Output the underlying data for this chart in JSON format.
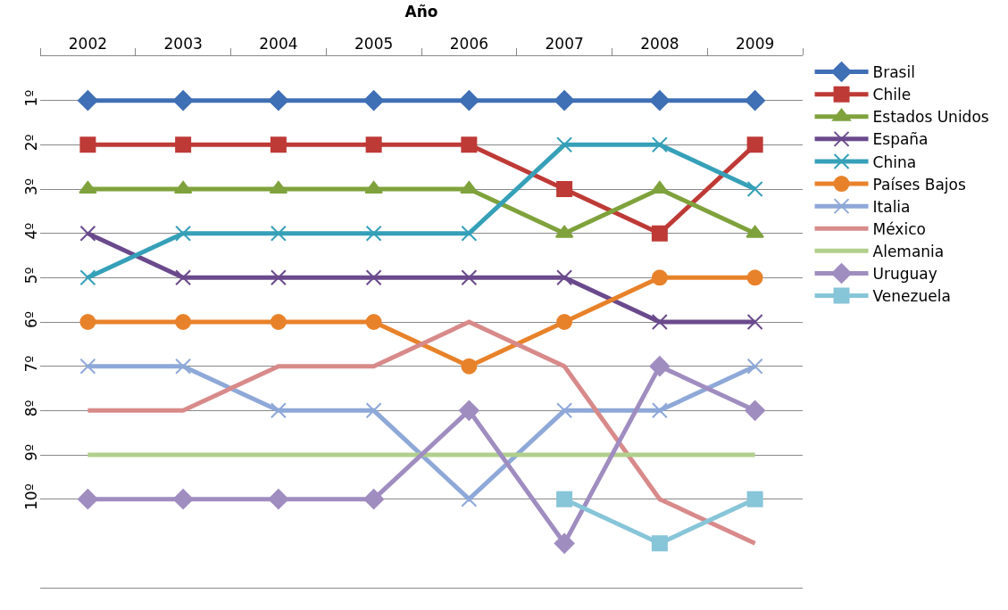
{
  "chart_data": {
    "type": "line",
    "xlabel": "Año",
    "categories": [
      "2002",
      "2003",
      "2004",
      "2005",
      "2006",
      "2007",
      "2008",
      "2009"
    ],
    "series": [
      {
        "name": "Brasil",
        "color": "#3f6fb5",
        "marker": "diamond",
        "values": [
          1,
          1,
          1,
          1,
          1,
          1,
          1,
          1
        ]
      },
      {
        "name": "Chile",
        "color": "#be3a36",
        "marker": "square",
        "values": [
          2,
          2,
          2,
          2,
          2,
          3,
          4,
          2
        ]
      },
      {
        "name": "Estados Unidos",
        "color": "#7fa23c",
        "marker": "triangle",
        "values": [
          3,
          3,
          3,
          3,
          3,
          4,
          3,
          4
        ]
      },
      {
        "name": "España",
        "color": "#6a4a8c",
        "marker": "cross",
        "values": [
          4,
          5,
          5,
          5,
          5,
          5,
          6,
          6
        ]
      },
      {
        "name": "China",
        "color": "#35a0b8",
        "marker": "cross",
        "values": [
          5,
          4,
          4,
          4,
          4,
          2,
          2,
          3
        ]
      },
      {
        "name": "Países Bajos",
        "color": "#e8822a",
        "marker": "circle",
        "values": [
          6,
          6,
          6,
          6,
          7,
          6,
          5,
          5
        ]
      },
      {
        "name": "Italia",
        "color": "#8ea8d8",
        "marker": "cross",
        "values": [
          7,
          7,
          8,
          8,
          10,
          8,
          8,
          7
        ]
      },
      {
        "name": "México",
        "color": "#d88a8a",
        "marker": "none",
        "values": [
          8,
          8,
          7,
          7,
          6,
          7,
          10,
          11
        ]
      },
      {
        "name": "Alemania",
        "color": "#b1cf8c",
        "marker": "none",
        "values": [
          9,
          9,
          9,
          9,
          9,
          9,
          9,
          9
        ]
      },
      {
        "name": "Uruguay",
        "color": "#a08dc0",
        "marker": "diamond",
        "values": [
          10,
          10,
          10,
          10,
          8,
          11,
          7,
          8
        ]
      },
      {
        "name": "Venezuela",
        "color": "#87c5d8",
        "marker": "square",
        "values": [
          null,
          null,
          null,
          null,
          null,
          10,
          11,
          10
        ]
      }
    ],
    "ylim": [
      12,
      0
    ],
    "yticks": [
      {
        "value": 1,
        "label": "1º"
      },
      {
        "value": 2,
        "label": "2º"
      },
      {
        "value": 3,
        "label": "3º"
      },
      {
        "value": 4,
        "label": "4º"
      },
      {
        "value": 5,
        "label": "5º"
      },
      {
        "value": 6,
        "label": "6º"
      },
      {
        "value": 7,
        "label": "7º"
      },
      {
        "value": 8,
        "label": "8º"
      },
      {
        "value": 9,
        "label": "9º"
      },
      {
        "value": 10,
        "label": "10º"
      }
    ],
    "grid": "y",
    "legend": "right",
    "line_style": "solid"
  }
}
